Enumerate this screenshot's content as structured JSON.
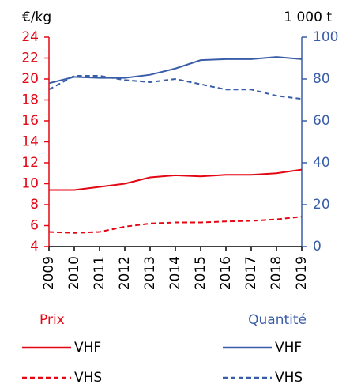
{
  "chart_data": {
    "type": "line",
    "y_label": "€/kg",
    "y2_label": "1 000 t",
    "categories": [
      "2009",
      "2010",
      "2011",
      "2012",
      "2013",
      "2014",
      "2015",
      "2016",
      "2017",
      "2018",
      "2019"
    ],
    "ylim": [
      4,
      24
    ],
    "yticks": [
      4,
      6,
      8,
      10,
      12,
      14,
      16,
      18,
      20,
      22,
      24
    ],
    "y2lim": [
      0,
      100
    ],
    "y2ticks": [
      0,
      20,
      40,
      60,
      80,
      100
    ],
    "y_color": "#e30613",
    "y2_color": "#3a5da8",
    "legend_titles": {
      "y": "Prix",
      "y2": "Quantité"
    },
    "series": [
      {
        "name": "VHF",
        "color": "#e30613",
        "dashed": false,
        "axis": "y",
        "values": [
          9.4,
          9.4,
          9.7,
          10.0,
          10.6,
          10.8,
          10.7,
          10.85,
          10.85,
          11.0,
          11.35
        ]
      },
      {
        "name": "VHS",
        "color": "#e30613",
        "dashed": true,
        "axis": "y",
        "values": [
          5.4,
          5.3,
          5.4,
          5.9,
          6.2,
          6.3,
          6.3,
          6.4,
          6.45,
          6.6,
          6.85
        ]
      },
      {
        "name": "VHF",
        "color": "#3a5da8",
        "dashed": false,
        "axis": "y2",
        "values": [
          78,
          81,
          80.5,
          80.5,
          82,
          85,
          89,
          89.5,
          89.5,
          90.5,
          89.5
        ]
      },
      {
        "name": "VHS",
        "color": "#3a5da8",
        "dashed": true,
        "axis": "y2",
        "values": [
          75,
          81.5,
          81.5,
          79.5,
          78.5,
          80,
          77.5,
          75,
          75,
          72,
          70.5
        ]
      }
    ]
  }
}
